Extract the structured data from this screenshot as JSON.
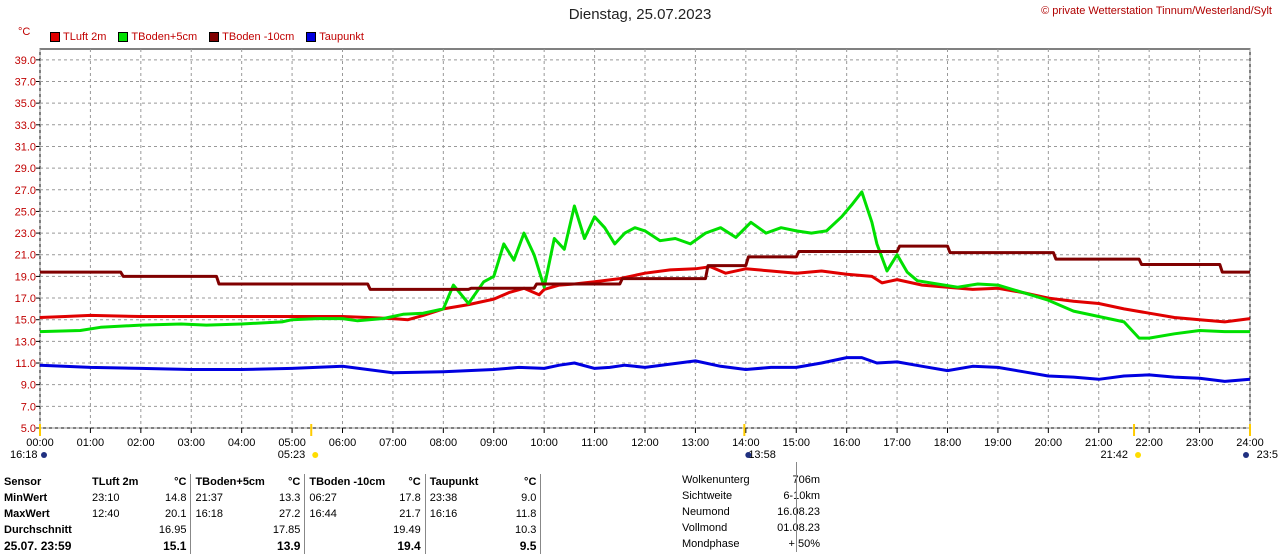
{
  "header": {
    "title": "Dienstag, 25.07.2023",
    "copyright": "© private Wetterstation Tinnum/Westerland/Sylt",
    "unit": "°C"
  },
  "legend": [
    {
      "name": "TLuft 2m",
      "color": "#e00000"
    },
    {
      "name": "TBoden+5cm",
      "color": "#00e000"
    },
    {
      "name": "TBoden -10cm",
      "color": "#800000"
    },
    {
      "name": "Taupunkt",
      "color": "#0000e0"
    }
  ],
  "chart_data": {
    "type": "line",
    "ylim": [
      5.0,
      40.0
    ],
    "yticks": [
      "39.0",
      "37.0",
      "35.0",
      "33.0",
      "31.0",
      "29.0",
      "27.0",
      "25.0",
      "23.0",
      "21.0",
      "19.0",
      "17.0",
      "15.0",
      "13.0",
      "11.0",
      "9.0",
      "7.0",
      "5.0"
    ],
    "xlim": [
      0,
      24
    ],
    "xticks": [
      "00:00",
      "01:00",
      "02:00",
      "03:00",
      "04:00",
      "05:00",
      "06:00",
      "07:00",
      "08:00",
      "09:00",
      "10:00",
      "11:00",
      "12:00",
      "13:00",
      "14:00",
      "15:00",
      "16:00",
      "17:00",
      "18:00",
      "19:00",
      "20:00",
      "21:00",
      "22:00",
      "23:00",
      "24:00"
    ],
    "grid": true,
    "legend_position": "top-left",
    "markers": [
      {
        "label": "16:18",
        "hour": 0.0,
        "icon": "moonset-icon"
      },
      {
        "label": "05:23",
        "hour": 5.38,
        "icon": "sunrise-icon"
      },
      {
        "label": "13:58",
        "hour": 13.97,
        "icon": "moon-transit-icon"
      },
      {
        "label": "21:42",
        "hour": 21.7,
        "icon": "sunset-icon"
      },
      {
        "label": "23:5",
        "hour": 24.0,
        "icon": "moonrise-icon"
      }
    ],
    "series": [
      {
        "name": "TLuft 2m",
        "color": "#e00000",
        "x": [
          0,
          0.5,
          1,
          2,
          3,
          4,
          5,
          6,
          6.5,
          7,
          7.3,
          7.6,
          8,
          8.5,
          9,
          9.3,
          9.6,
          9.9,
          10,
          10.3,
          10.6,
          11,
          11.5,
          12,
          12.5,
          13,
          13.3,
          13.6,
          14,
          14.5,
          15,
          15.5,
          16,
          16.5,
          16.7,
          17,
          17.5,
          18,
          18.5,
          19,
          19.5,
          20,
          20.5,
          21,
          21.5,
          22,
          22.5,
          23,
          23.5,
          24
        ],
        "values": [
          15.2,
          15.3,
          15.4,
          15.3,
          15.3,
          15.3,
          15.3,
          15.3,
          15.2,
          15.1,
          15.0,
          15.4,
          16.0,
          16.4,
          16.9,
          17.5,
          17.9,
          17.3,
          17.8,
          18.2,
          18.3,
          18.5,
          18.8,
          19.3,
          19.6,
          19.7,
          19.9,
          19.3,
          19.7,
          19.5,
          19.3,
          19.5,
          19.2,
          19.0,
          18.4,
          18.7,
          18.2,
          18.0,
          17.8,
          17.9,
          17.5,
          17.0,
          16.7,
          16.5,
          16.0,
          15.6,
          15.2,
          15.0,
          14.8,
          15.1
        ]
      },
      {
        "name": "TBoden+5cm",
        "color": "#00e000",
        "x": [
          0,
          0.8,
          1.2,
          2,
          2.8,
          3.3,
          4,
          4.8,
          5,
          5.5,
          6,
          6.3,
          6.8,
          7,
          7.2,
          7.6,
          8,
          8.2,
          8.5,
          8.8,
          9,
          9.2,
          9.4,
          9.6,
          9.8,
          10,
          10.2,
          10.4,
          10.6,
          10.8,
          11,
          11.2,
          11.4,
          11.6,
          11.8,
          12,
          12.3,
          12.6,
          12.9,
          13.2,
          13.5,
          13.8,
          14.1,
          14.4,
          14.7,
          15,
          15.3,
          15.6,
          15.9,
          16.1,
          16.3,
          16.5,
          16.6,
          16.8,
          17,
          17.2,
          17.4,
          17.8,
          18.2,
          18.6,
          19,
          19.5,
          20,
          20.5,
          21,
          21.5,
          21.8,
          22,
          22.5,
          23,
          23.5,
          24
        ],
        "values": [
          13.9,
          14.0,
          14.3,
          14.5,
          14.6,
          14.5,
          14.6,
          14.8,
          15.0,
          15.1,
          15.1,
          14.9,
          15.1,
          15.3,
          15.5,
          15.6,
          16.0,
          18.2,
          16.5,
          18.5,
          19.0,
          22.0,
          20.5,
          23.0,
          21.0,
          18.0,
          22.5,
          21.5,
          25.5,
          22.5,
          24.5,
          23.5,
          22.0,
          23.0,
          23.5,
          23.2,
          22.3,
          22.5,
          22.0,
          23.0,
          23.5,
          22.6,
          24.0,
          23.0,
          23.5,
          23.2,
          23.0,
          23.2,
          24.5,
          25.6,
          26.8,
          24.0,
          22.0,
          19.5,
          21.0,
          19.4,
          18.6,
          18.3,
          18.0,
          18.3,
          18.2,
          17.5,
          16.8,
          15.8,
          15.3,
          14.8,
          13.3,
          13.3,
          13.7,
          14.0,
          13.9,
          13.9
        ]
      },
      {
        "name": "TBoden -10cm",
        "color": "#800000",
        "x": [
          0,
          1.6,
          1.65,
          3.5,
          3.55,
          6.5,
          6.55,
          8.5,
          8.55,
          9.8,
          9.85,
          11.5,
          11.55,
          13.2,
          13.25,
          14.0,
          14.05,
          15.0,
          15.05,
          17.0,
          17.05,
          18.0,
          18.05,
          20.1,
          20.15,
          21.8,
          21.85,
          23.4,
          23.45,
          24
        ],
        "values": [
          19.4,
          19.4,
          19.0,
          19.0,
          18.3,
          18.3,
          17.8,
          17.8,
          17.9,
          17.9,
          18.3,
          18.3,
          18.8,
          18.8,
          20.0,
          20.0,
          20.8,
          20.8,
          21.3,
          21.3,
          21.8,
          21.8,
          21.2,
          21.2,
          20.6,
          20.6,
          20.1,
          20.1,
          19.4,
          19.4
        ]
      },
      {
        "name": "Taupunkt",
        "color": "#0000e0",
        "x": [
          0,
          1,
          2,
          3,
          4,
          5,
          6,
          7,
          8,
          8.5,
          9,
          9.5,
          10,
          10.3,
          10.6,
          11,
          11.3,
          11.6,
          12,
          12.5,
          13,
          13.5,
          14,
          14.5,
          15,
          15.5,
          16,
          16.3,
          16.6,
          17,
          17.5,
          18,
          18.5,
          19,
          19.5,
          20,
          20.5,
          21,
          21.5,
          22,
          22.5,
          23,
          23.5,
          24
        ],
        "values": [
          10.8,
          10.6,
          10.5,
          10.4,
          10.4,
          10.5,
          10.7,
          10.1,
          10.2,
          10.3,
          10.4,
          10.6,
          10.5,
          10.8,
          11.0,
          10.5,
          10.6,
          10.8,
          10.6,
          10.9,
          11.2,
          10.7,
          10.4,
          10.6,
          10.6,
          11.0,
          11.5,
          11.5,
          11.0,
          11.1,
          10.7,
          10.3,
          10.7,
          10.6,
          10.2,
          9.8,
          9.7,
          9.5,
          9.8,
          9.9,
          9.7,
          9.6,
          9.3,
          9.5
        ]
      }
    ]
  },
  "stats": {
    "headers": [
      "Sensor",
      "TLuft 2m",
      "°C",
      "TBoden+5cm",
      "°C",
      "TBoden -10cm",
      "°C",
      "Taupunkt",
      "°C"
    ],
    "rows": [
      {
        "label": "MinWert",
        "cells": [
          "23:10",
          "14.8",
          "21:37",
          "13.3",
          "06:27",
          "17.8",
          "23:38",
          "9.0"
        ]
      },
      {
        "label": "MaxWert",
        "cells": [
          "12:40",
          "20.1",
          "16:18",
          "27.2",
          "16:44",
          "21.7",
          "16:16",
          "11.8"
        ]
      },
      {
        "label": "Durchschnitt",
        "cells": [
          "",
          "16.95",
          "",
          "17.85",
          "",
          "19.49",
          "",
          "10.3"
        ]
      },
      {
        "label": "25.07. 23:59",
        "cells": [
          "",
          "15.1",
          "",
          "13.9",
          "",
          "19.4",
          "",
          "9.5"
        ]
      }
    ]
  },
  "info": [
    {
      "key": "Wolkenunterg",
      "value": "706m"
    },
    {
      "key": "Sichtweite",
      "value": "6-10km"
    },
    {
      "key": "Neumond",
      "value": "16.08.23"
    },
    {
      "key": "Vollmond",
      "value": "01.08.23"
    },
    {
      "key": "Mondphase",
      "value": "+ 50%"
    }
  ]
}
